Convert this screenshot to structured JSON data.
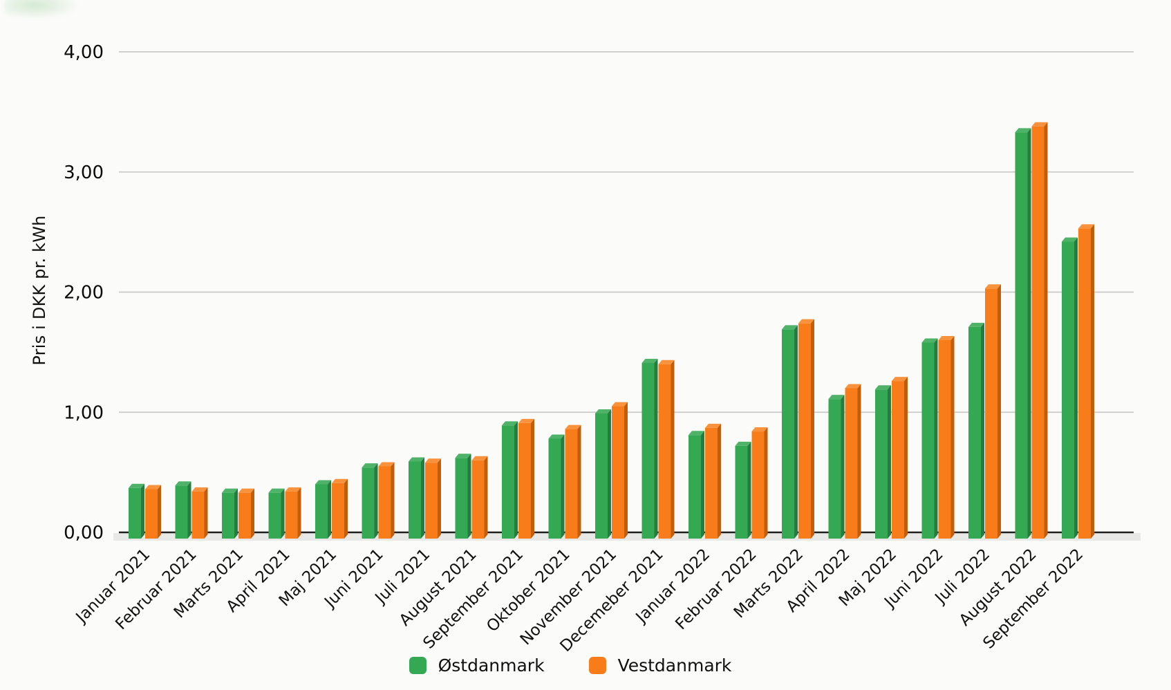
{
  "chart_data": {
    "type": "bar",
    "title": "",
    "xlabel": "",
    "ylabel": "Pris i DKK pr. kWh",
    "ylim": [
      0,
      4
    ],
    "y_ticks": [
      "0,00",
      "1,00",
      "2,00",
      "3,00",
      "4,00"
    ],
    "grid": true,
    "legend_position": "bottom",
    "bar_style": "3d-column",
    "background_color": "#fbfbf9",
    "gridline_color": "#c9c9c9",
    "axis_line_color": "#1f1f1f",
    "floor_color": "#e8e8e6",
    "categories": [
      "Januar 2021",
      "Februar 2021",
      "Marts 2021",
      "April 2021",
      "Maj 2021",
      "Juni 2021",
      "Juli 2021",
      "August 2021",
      "September 2021",
      "Oktober 2021",
      "November 2021",
      "Decemeber 2021",
      "Januar 2022",
      "Februar 2022",
      "Marts 2022",
      "April 2022",
      "Maj 2022",
      "Juni 2022",
      "Juli 2022",
      "August 2022",
      "September 2022"
    ],
    "series": [
      {
        "name": "Østdanmark",
        "color": "#34a853",
        "color_top": "#4eb369",
        "color_side": "#247c40",
        "values": [
          0.37,
          0.39,
          0.33,
          0.33,
          0.4,
          0.54,
          0.59,
          0.62,
          0.89,
          0.78,
          0.99,
          1.41,
          0.81,
          0.72,
          1.69,
          1.11,
          1.19,
          1.58,
          1.71,
          3.33,
          2.42
        ]
      },
      {
        "name": "Vestdanmark",
        "color": "#f87d1a",
        "color_top": "#f8923c",
        "color_side": "#c25d0b",
        "values": [
          0.36,
          0.34,
          0.33,
          0.34,
          0.41,
          0.55,
          0.58,
          0.6,
          0.91,
          0.86,
          1.05,
          1.4,
          0.87,
          0.84,
          1.74,
          1.2,
          1.26,
          1.6,
          2.03,
          3.38,
          2.53
        ]
      }
    ]
  }
}
